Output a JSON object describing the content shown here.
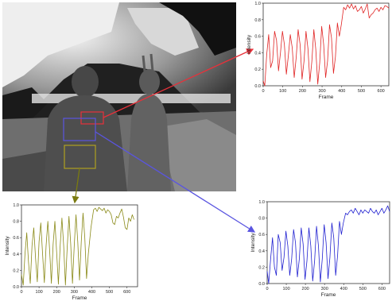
{
  "colors": {
    "roi_red": "#e8313a",
    "roi_blue": "#5a55e0",
    "roi_olive": "#b0a020",
    "line_red": "#e02424",
    "line_blue": "#2020d0",
    "line_olive": "#8a8a18",
    "arrow_olive": "#7a7a10"
  },
  "depth_image": {
    "description_visible": false
  },
  "chart_data": [
    {
      "id": "red",
      "type": "line",
      "color": "#e02424",
      "xlabel": "Frame",
      "ylabel": "Intensity",
      "xlim": [
        0,
        640
      ],
      "ylim": [
        0,
        1.0
      ],
      "xticks": [
        0,
        100,
        200,
        300,
        400,
        500,
        600
      ],
      "yticks": [
        "0.0",
        "0.2",
        "0.4",
        "0.6",
        "0.8",
        "1.0"
      ],
      "series": [
        {
          "x": [
            0,
            8,
            18,
            28,
            38,
            48,
            58,
            68,
            78,
            88,
            98,
            108,
            118,
            128,
            138,
            148,
            158,
            168,
            178,
            188,
            198,
            208,
            218,
            228,
            238,
            248,
            258,
            268,
            278,
            288,
            298,
            308,
            318,
            328,
            338,
            348,
            358,
            368,
            378,
            388,
            398,
            410,
            420,
            430,
            440,
            450,
            460,
            470,
            480,
            490,
            500,
            510,
            520,
            530,
            540,
            550,
            560,
            570,
            580,
            590,
            600,
            610,
            620,
            630,
            640
          ],
          "y": [
            0.06,
            0.0,
            0.38,
            0.62,
            0.22,
            0.3,
            0.66,
            0.55,
            0.18,
            0.4,
            0.66,
            0.5,
            0.14,
            0.36,
            0.62,
            0.46,
            0.1,
            0.34,
            0.68,
            0.5,
            0.08,
            0.3,
            0.66,
            0.45,
            0.05,
            0.3,
            0.68,
            0.44,
            0.02,
            0.28,
            0.72,
            0.5,
            0.1,
            0.3,
            0.74,
            0.58,
            0.15,
            0.35,
            0.76,
            0.6,
            0.74,
            0.95,
            0.92,
            0.98,
            0.94,
            0.99,
            0.93,
            0.97,
            0.9,
            0.92,
            0.96,
            0.88,
            0.93,
            0.99,
            0.82,
            0.86,
            0.88,
            0.92,
            0.94,
            0.9,
            0.95,
            0.92,
            0.97,
            0.96,
            0.94
          ]
        }
      ]
    },
    {
      "id": "olive",
      "type": "line",
      "color": "#8a8a18",
      "xlabel": "Frame",
      "ylabel": "Intensity",
      "xlim": [
        0,
        660
      ],
      "ylim": [
        0,
        1.0
      ],
      "xticks": [
        0,
        100,
        200,
        300,
        400,
        500,
        600
      ],
      "yticks": [
        "0.0",
        "0.2",
        "0.4",
        "0.6",
        "0.8",
        "1.0"
      ],
      "series": [
        {
          "x": [
            0,
            10,
            20,
            30,
            40,
            50,
            60,
            70,
            80,
            90,
            100,
            110,
            120,
            130,
            140,
            150,
            160,
            170,
            180,
            190,
            200,
            210,
            220,
            230,
            240,
            250,
            260,
            270,
            280,
            290,
            300,
            310,
            320,
            330,
            340,
            350,
            360,
            370,
            380,
            395,
            410,
            420,
            430,
            440,
            450,
            460,
            470,
            480,
            490,
            500,
            510,
            520,
            530,
            540,
            550,
            560,
            570,
            580,
            590,
            600,
            610,
            620,
            630,
            640
          ],
          "y": [
            0.15,
            0.02,
            0.4,
            0.66,
            0.3,
            0.04,
            0.5,
            0.72,
            0.35,
            0.06,
            0.55,
            0.78,
            0.4,
            0.05,
            0.5,
            0.8,
            0.45,
            0.04,
            0.52,
            0.8,
            0.42,
            0.03,
            0.5,
            0.84,
            0.5,
            0.02,
            0.48,
            0.86,
            0.52,
            0.04,
            0.5,
            0.88,
            0.55,
            0.08,
            0.55,
            0.9,
            0.6,
            0.1,
            0.4,
            0.72,
            0.94,
            0.96,
            0.92,
            0.97,
            0.95,
            0.93,
            0.96,
            0.9,
            0.94,
            0.92,
            0.88,
            0.78,
            0.76,
            0.86,
            0.84,
            0.9,
            0.95,
            0.85,
            0.72,
            0.7,
            0.84,
            0.8,
            0.88,
            0.82
          ]
        }
      ]
    },
    {
      "id": "blue",
      "type": "line",
      "color": "#2020d0",
      "xlabel": "Frame",
      "ylabel": "Intensity",
      "xlim": [
        0,
        640
      ],
      "ylim": [
        0,
        1.0
      ],
      "xticks": [
        0,
        100,
        200,
        300,
        400,
        500,
        600
      ],
      "yticks": [
        "0.0",
        "0.2",
        "0.4",
        "0.6",
        "0.8",
        "1.0"
      ],
      "series": [
        {
          "x": [
            0,
            8,
            18,
            28,
            38,
            48,
            58,
            68,
            78,
            88,
            98,
            108,
            118,
            128,
            138,
            148,
            158,
            168,
            178,
            188,
            198,
            208,
            218,
            228,
            238,
            248,
            258,
            268,
            278,
            288,
            298,
            308,
            318,
            328,
            338,
            348,
            358,
            368,
            378,
            388,
            398,
            410,
            420,
            430,
            440,
            450,
            460,
            470,
            480,
            490,
            500,
            510,
            520,
            530,
            540,
            550,
            560,
            570,
            580,
            590,
            600,
            610,
            620,
            630,
            640
          ],
          "y": [
            0.15,
            0.0,
            0.3,
            0.56,
            0.2,
            0.1,
            0.6,
            0.5,
            0.16,
            0.32,
            0.64,
            0.46,
            0.1,
            0.3,
            0.66,
            0.5,
            0.08,
            0.3,
            0.68,
            0.48,
            0.05,
            0.28,
            0.68,
            0.46,
            0.03,
            0.28,
            0.7,
            0.46,
            0.02,
            0.3,
            0.72,
            0.5,
            0.06,
            0.32,
            0.74,
            0.56,
            0.1,
            0.34,
            0.76,
            0.6,
            0.74,
            0.86,
            0.84,
            0.88,
            0.9,
            0.86,
            0.92,
            0.88,
            0.84,
            0.9,
            0.86,
            0.9,
            0.88,
            0.86,
            0.92,
            0.88,
            0.86,
            0.9,
            0.84,
            0.88,
            0.92,
            0.86,
            0.9,
            0.95,
            0.88
          ]
        }
      ]
    }
  ]
}
